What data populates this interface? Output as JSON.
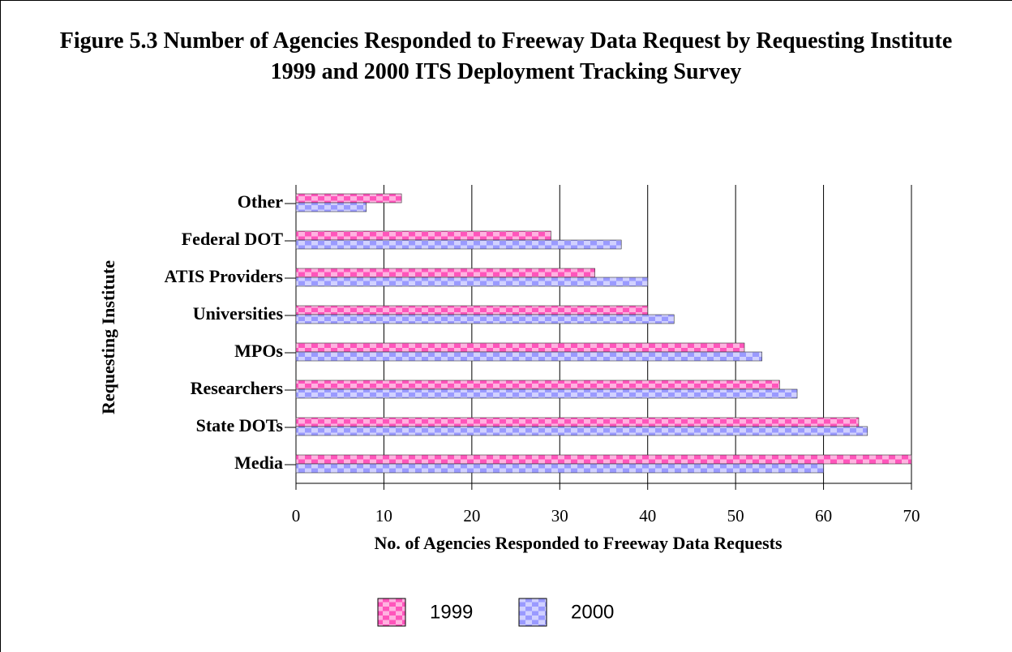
{
  "chart_data": {
    "type": "hbar",
    "title": "Figure 5.3 Number of Agencies Responded to Freeway Data Request by Requesting Institute",
    "subtitle": "1999 and 2000 ITS Deployment Tracking Survey",
    "x_label": "No. of Agencies Responded to Freeway Data Requests",
    "y_label": "Requesting Institute",
    "categories": [
      "Media",
      "State DOTs",
      "Researchers",
      "MPOs",
      "Universities",
      "ATIS Providers",
      "Federal DOT",
      "Other"
    ],
    "series": [
      {
        "name": "1999",
        "color": "#ff55bb",
        "values": [
          70,
          64,
          55,
          51,
          40,
          34,
          29,
          12
        ]
      },
      {
        "name": "2000",
        "color": "#9a9aff",
        "values": [
          60,
          65,
          57,
          53,
          43,
          40,
          37,
          8
        ]
      }
    ],
    "xlim": [
      0,
      70
    ],
    "xticks": [
      0,
      10,
      20,
      30,
      40,
      50,
      60,
      70
    ],
    "grid": true
  }
}
